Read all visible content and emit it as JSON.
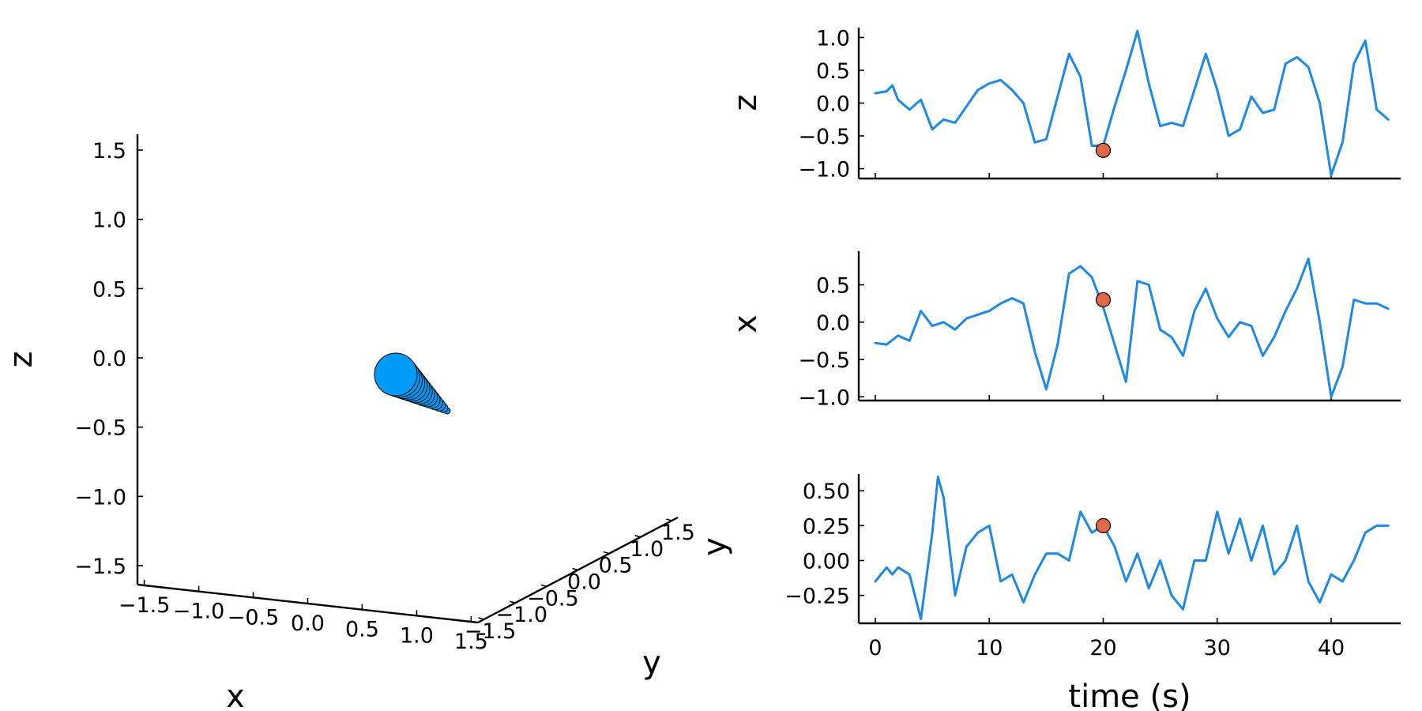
{
  "colors": {
    "series": "#1e88e5",
    "marker": "#e1694a",
    "ball": "#009af9",
    "axis": "#000000"
  },
  "chart_data": [
    {
      "type": "scatter",
      "panel": "3d",
      "xlabel": "x",
      "ylabel": "y",
      "zlabel": "z",
      "xlim": [
        -1.5,
        1.5
      ],
      "ylim": [
        -1.5,
        1.5
      ],
      "zlim": [
        -1.5,
        1.5
      ],
      "x_ticks": [
        "−1.5",
        "−1.0",
        "−0.5",
        "0.0",
        "0.5",
        "1.0",
        "1.5"
      ],
      "y_ticks": [
        "−1.5",
        "−1.0",
        "−0.5",
        "0.0",
        "0.5",
        "1.0",
        "1.5"
      ],
      "z_ticks": [
        "−1.5",
        "−1.0",
        "−0.5",
        "0.0",
        "0.5",
        "1.0",
        "1.5"
      ],
      "grid": false,
      "legend": "none"
    },
    {
      "type": "line",
      "panel": "z-vs-time",
      "ylabel": "z",
      "ylim": [
        -1.15,
        1.15
      ],
      "yticks": [
        1.0,
        0.5,
        0.0,
        -0.5,
        -1.0
      ],
      "ytick_labels": [
        "1.0",
        "0.5",
        "0.0",
        "−0.5",
        "−1.0"
      ],
      "x": [
        0,
        1,
        1.5,
        2,
        3,
        4,
        5,
        6,
        7,
        8,
        9,
        10,
        11,
        12,
        13,
        14,
        15,
        16,
        17,
        18,
        19,
        20,
        21,
        22,
        23,
        24,
        25,
        26,
        27,
        28,
        29,
        30,
        31,
        32,
        33,
        34,
        35,
        36,
        37,
        38,
        39,
        40,
        41,
        42,
        43,
        44,
        45
      ],
      "y": [
        0.15,
        0.18,
        0.27,
        0.05,
        -0.1,
        0.05,
        -0.4,
        -0.25,
        -0.3,
        -0.05,
        0.2,
        0.3,
        0.35,
        0.2,
        0.0,
        -0.6,
        -0.55,
        0.1,
        0.75,
        0.4,
        -0.65,
        -0.65,
        -0.05,
        0.5,
        1.1,
        0.3,
        -0.35,
        -0.3,
        -0.35,
        0.2,
        0.75,
        0.2,
        -0.5,
        -0.4,
        0.1,
        -0.15,
        -0.1,
        0.6,
        0.7,
        0.55,
        0.0,
        -1.1,
        -0.6,
        0.6,
        0.95,
        -0.1,
        -0.25
      ],
      "marker": {
        "x": 20,
        "y": -0.72
      },
      "grid": false,
      "legend": "none"
    },
    {
      "type": "line",
      "panel": "x-vs-time",
      "ylabel": "x",
      "ylim": [
        -1.05,
        0.95
      ],
      "yticks": [
        0.5,
        0.0,
        -0.5,
        -1.0
      ],
      "ytick_labels": [
        "0.5",
        "0.0",
        "−0.5",
        "−1.0"
      ],
      "x": [
        0,
        1,
        2,
        3,
        4,
        5,
        6,
        7,
        8,
        9,
        10,
        11,
        12,
        13,
        14,
        15,
        16,
        17,
        18,
        19,
        20,
        21,
        22,
        23,
        24,
        25,
        26,
        27,
        28,
        29,
        30,
        31,
        32,
        33,
        34,
        35,
        36,
        37,
        38,
        39,
        40,
        41,
        42,
        43,
        44,
        45
      ],
      "y": [
        -0.28,
        -0.3,
        -0.18,
        -0.25,
        0.15,
        -0.05,
        0.0,
        -0.1,
        0.05,
        0.1,
        0.15,
        0.25,
        0.32,
        0.25,
        -0.4,
        -0.9,
        -0.3,
        0.65,
        0.75,
        0.6,
        0.2,
        -0.3,
        -0.8,
        0.55,
        0.5,
        -0.1,
        -0.2,
        -0.45,
        0.15,
        0.45,
        0.05,
        -0.2,
        0.0,
        -0.05,
        -0.45,
        -0.2,
        0.15,
        0.45,
        0.85,
        0.0,
        -1.0,
        -0.6,
        0.3,
        0.25,
        0.25,
        0.18
      ],
      "marker": {
        "x": 20,
        "y": 0.3
      },
      "grid": false,
      "legend": "none"
    },
    {
      "type": "line",
      "panel": "y-vs-time",
      "ylabel": "y",
      "xlabel": "time (s)",
      "xlim": [
        -1,
        46
      ],
      "x_ticks": [
        0,
        10,
        20,
        30,
        40
      ],
      "ylim": [
        -0.45,
        0.62
      ],
      "yticks": [
        0.5,
        0.25,
        0.0,
        -0.25
      ],
      "ytick_labels": [
        "0.50",
        "0.25",
        "0.00",
        "−0.25"
      ],
      "x": [
        0,
        1,
        1.5,
        2,
        3,
        4,
        5,
        5.5,
        6,
        7,
        8,
        9,
        10,
        11,
        12,
        13,
        14,
        15,
        16,
        17,
        18,
        19,
        20,
        21,
        22,
        23,
        24,
        25,
        26,
        27,
        28,
        29,
        30,
        31,
        32,
        33,
        34,
        35,
        36,
        37,
        38,
        39,
        40,
        41,
        42,
        43,
        44,
        45
      ],
      "y": [
        -0.15,
        -0.05,
        -0.1,
        -0.05,
        -0.1,
        -0.42,
        0.2,
        0.6,
        0.45,
        -0.25,
        0.1,
        0.2,
        0.25,
        -0.15,
        -0.1,
        -0.3,
        -0.1,
        0.05,
        0.05,
        0.0,
        0.35,
        0.2,
        0.25,
        0.1,
        -0.15,
        0.05,
        -0.2,
        0.0,
        -0.25,
        -0.35,
        0.0,
        0.0,
        0.35,
        0.05,
        0.3,
        0.0,
        0.25,
        -0.1,
        0.0,
        0.25,
        -0.15,
        -0.3,
        -0.1,
        -0.15,
        0.0,
        0.2,
        0.25,
        0.25
      ],
      "marker": {
        "x": 20,
        "y": 0.25
      },
      "grid": false,
      "legend": "none"
    }
  ]
}
